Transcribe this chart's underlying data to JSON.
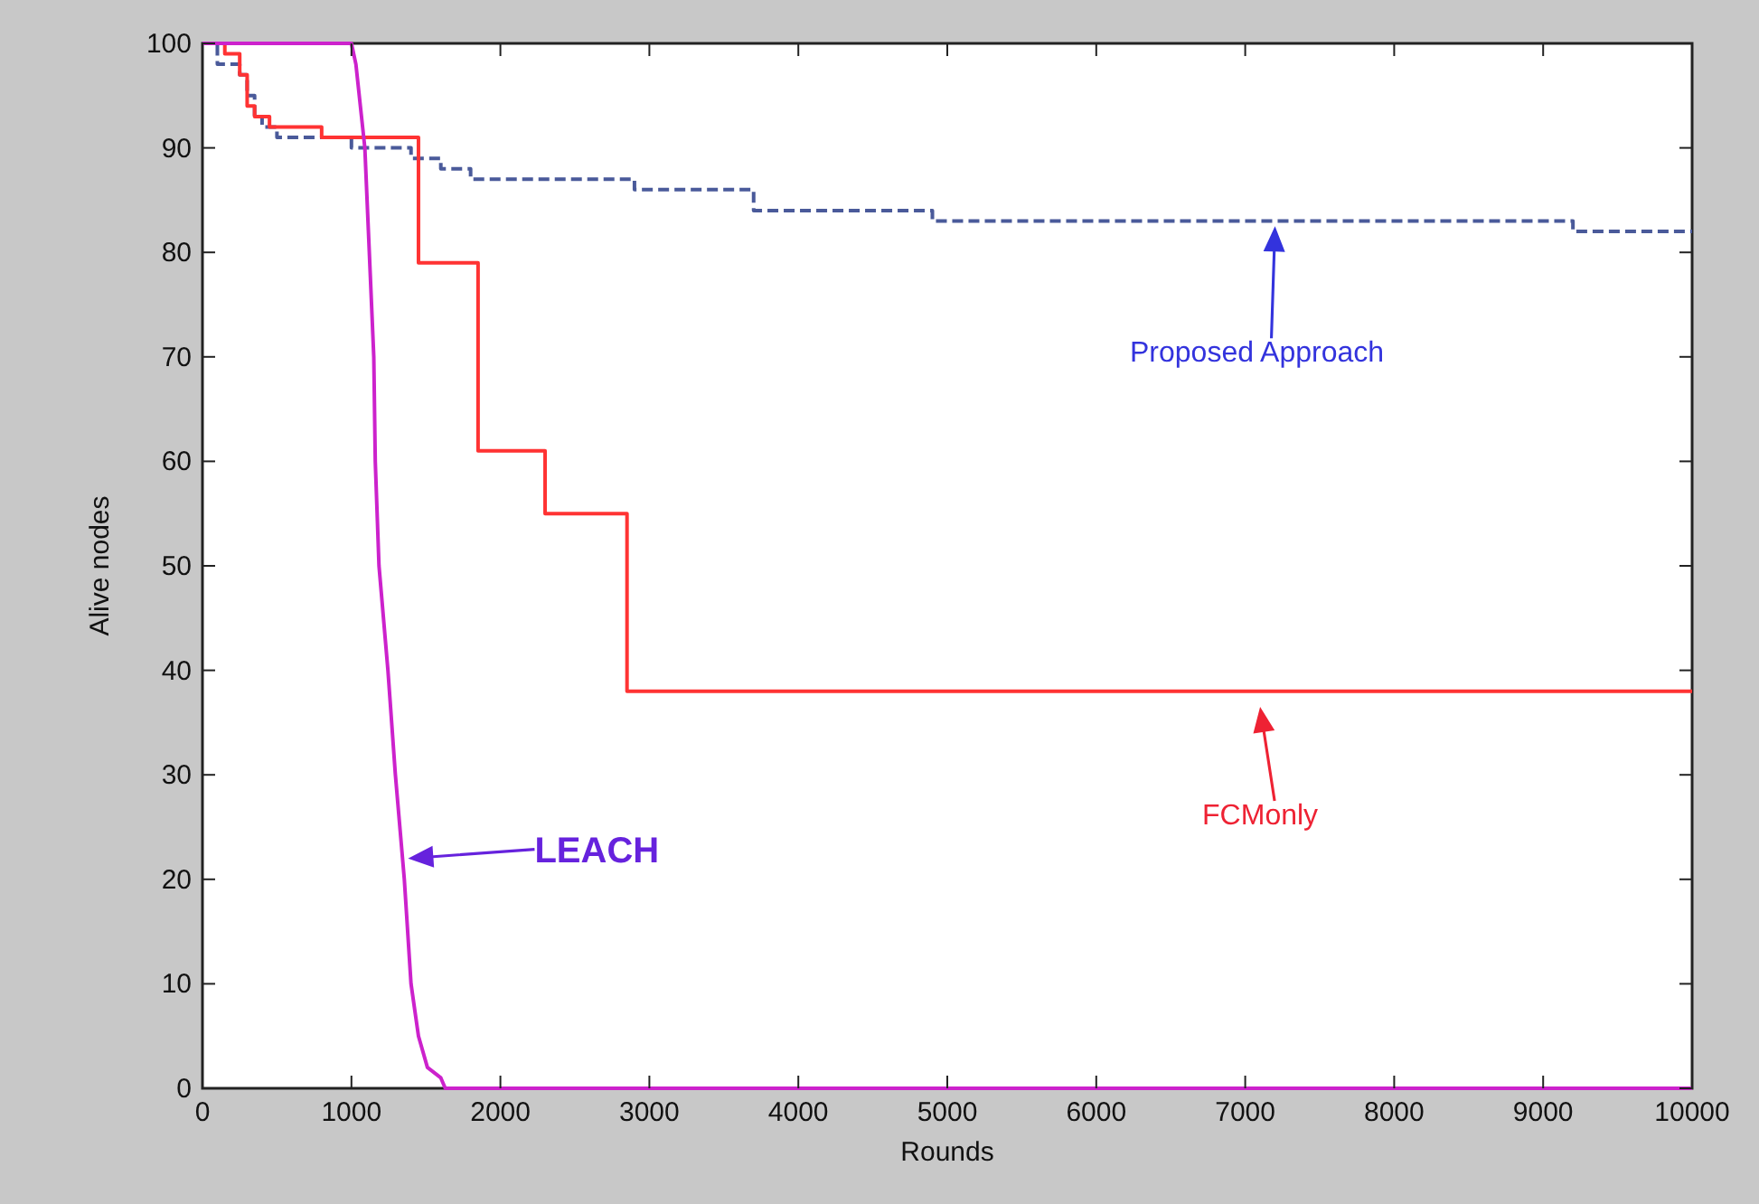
{
  "chart_data": {
    "type": "step",
    "xlabel": "Rounds",
    "ylabel": "Alive nodes",
    "xlim": [
      0,
      10000
    ],
    "ylim": [
      0,
      100
    ],
    "xticks": [
      0,
      1000,
      2000,
      3000,
      4000,
      5000,
      6000,
      7000,
      8000,
      9000,
      10000
    ],
    "yticks": [
      0,
      10,
      20,
      30,
      40,
      50,
      60,
      70,
      80,
      90,
      100
    ],
    "grid": false,
    "marker": "none",
    "series": [
      {
        "color": "#4a5a9a",
        "line_style": "dashed",
        "x": [
          0,
          100,
          250,
          300,
          350,
          400,
          500,
          1000,
          1400,
          1600,
          1800,
          2900,
          3700,
          4900,
          9200,
          10000
        ],
        "values": [
          100,
          98,
          97,
          95,
          93,
          92,
          91,
          90,
          89,
          88,
          87,
          86,
          84,
          83,
          82,
          82
        ]
      },
      {
        "color": "#ff3333",
        "line_style": "solid",
        "x": [
          0,
          150,
          250,
          300,
          350,
          450,
          800,
          1450,
          1850,
          2300,
          2850,
          10000
        ],
        "values": [
          100,
          99,
          97,
          94,
          93,
          92,
          91,
          79,
          61,
          55,
          38,
          38
        ]
      },
      {
        "type": "line",
        "color": "#cc22cc",
        "line_style": "solid",
        "x": [
          0,
          1000,
          1030,
          1090,
          1150,
          1160,
          1185,
          1245,
          1295,
          1355,
          1400,
          1450,
          1510,
          1600,
          1630,
          10000
        ],
        "values": [
          100,
          100,
          98,
          90,
          70,
          60,
          50,
          40,
          30,
          20,
          10,
          5,
          2,
          1,
          0,
          0
        ]
      }
    ],
    "annotations": [
      "Proposed Approach",
      "FCMonly",
      "LEACH"
    ]
  }
}
